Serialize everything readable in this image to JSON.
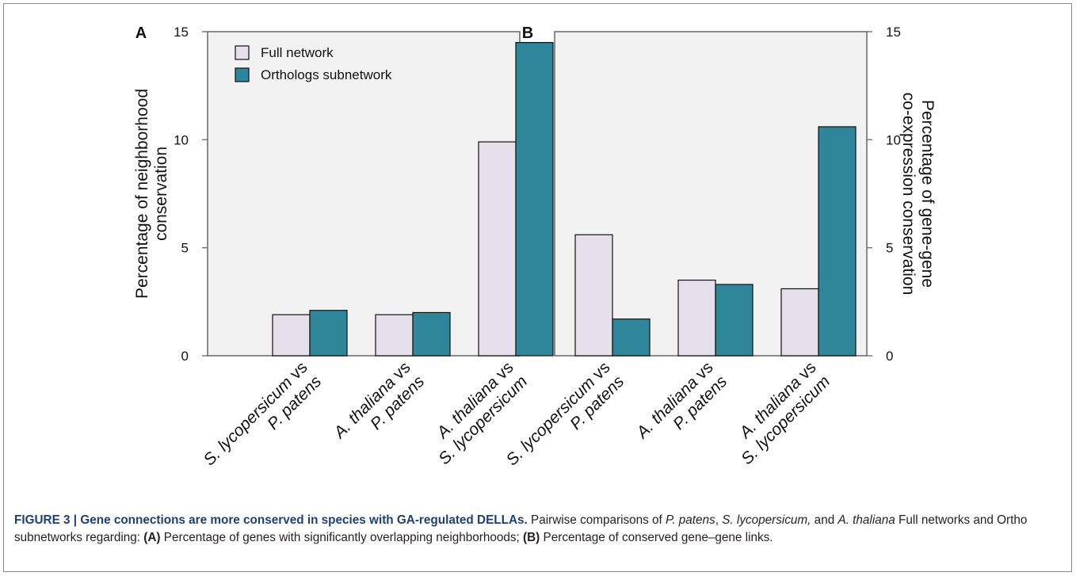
{
  "chart_data": [
    {
      "type": "bar",
      "panel_label": "A",
      "ylabel_lines": [
        "Percentage of neighborhood",
        "conservation"
      ],
      "ylim": [
        0,
        15
      ],
      "yticks": [
        0,
        5,
        10,
        15
      ],
      "categories": [
        [
          {
            "t": "S. lycopersicum",
            "i": true
          },
          {
            "t": " vs",
            "i": false
          }
        ],
        [
          {
            "t": "A. thaliana",
            "i": true
          },
          {
            "t": " vs",
            "i": false
          }
        ],
        [
          {
            "t": "A. thaliana",
            "i": true
          },
          {
            "t": " vs",
            "i": false
          }
        ]
      ],
      "categories_line2": [
        "P. patens",
        "P. patens",
        "S. lycopersicum"
      ],
      "series": [
        {
          "name": "Full network",
          "values": [
            1.9,
            1.9,
            9.9
          ]
        },
        {
          "name": "Orthologs subnetwork",
          "values": [
            2.1,
            2.0,
            14.5
          ]
        }
      ],
      "legend_position": "top-left",
      "grid": false
    },
    {
      "type": "bar",
      "panel_label": "B",
      "ylabel_lines": [
        "Percentage of gene-gene",
        "co-expression conservation"
      ],
      "ylim": [
        0,
        15
      ],
      "yticks": [
        0,
        5,
        10,
        15
      ],
      "categories": [
        [
          {
            "t": "S. lycopersicum",
            "i": true
          },
          {
            "t": " vs",
            "i": false
          }
        ],
        [
          {
            "t": "A. thaliana",
            "i": true
          },
          {
            "t": " vs",
            "i": false
          }
        ],
        [
          {
            "t": "A. thaliana",
            "i": true
          },
          {
            "t": " vs",
            "i": false
          }
        ]
      ],
      "categories_line2": [
        "P. patens",
        "P. patens",
        "S. lycopersicum"
      ],
      "series": [
        {
          "name": "Full network",
          "values": [
            5.6,
            3.5,
            3.1
          ]
        },
        {
          "name": "Orthologs subnetwork",
          "values": [
            1.7,
            3.3,
            10.6
          ]
        }
      ],
      "grid": false
    }
  ],
  "colors": {
    "full_network": "#e6e0ec",
    "orthologs_subnetwork": "#2f869a",
    "plot_background": "#f2f2f2",
    "caption_heading": "#1f3f74"
  },
  "caption": {
    "figure_label": "FIGURE 3 | Gene connections are more conserved in species with GA-regulated DELLAs.",
    "t1": " Pairwise comparisons of ",
    "sp1": "P. patens",
    "t2": ", ",
    "sp2": "S. lycopersicum,",
    "t3": " and ",
    "sp3": "A. thaliana",
    "t4": " Full networks and Ortho subnetworks regarding: ",
    "label_a": "(A)",
    "t5": " Percentage of genes with significantly overlapping neighborhoods; ",
    "label_b": "(B)",
    "t6": " Percentage of conserved gene–gene links."
  }
}
